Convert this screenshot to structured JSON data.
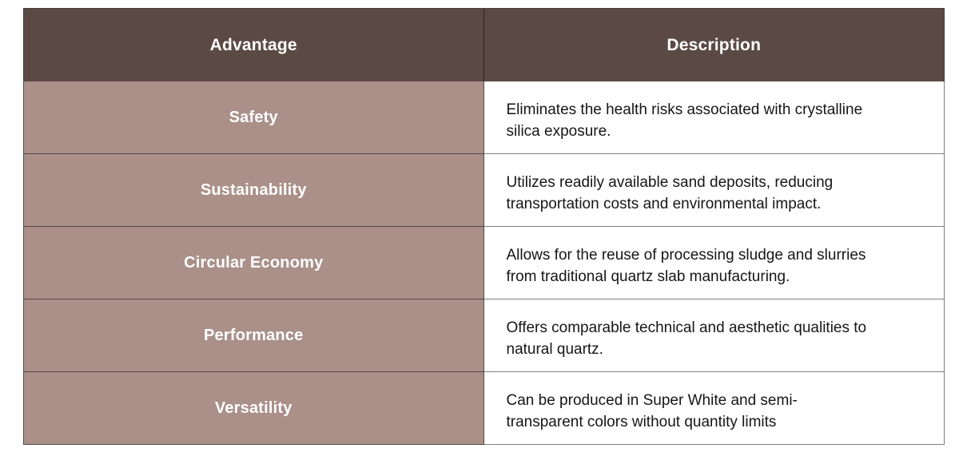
{
  "page": {
    "background": "#ffffff"
  },
  "table": {
    "columns": [
      "Advantage",
      "Description"
    ],
    "rows": [
      {
        "advantage": "Safety",
        "description": "Eliminates the health risks associated with crystalline\nsilica exposure."
      },
      {
        "advantage": "Sustainability",
        "description": "Utilizes readily available sand deposits, reducing\ntransportation costs and environmental impact."
      },
      {
        "advantage": "Circular Economy",
        "description": "Allows for the reuse of processing sludge and slurries\nfrom traditional quartz slab manufacturing."
      },
      {
        "advantage": "Performance",
        "description": "Offers comparable technical and aesthetic qualities to\nnatural quartz."
      },
      {
        "advantage": "Versatility",
        "description": "Can be produced in Super White and semi-\ntransparent colors without quantity limits"
      }
    ],
    "colors": {
      "header_background": "#5b4a43",
      "header_text": "#ffffff",
      "advantage_background": "#aa9089",
      "advantage_text": "#ffffff",
      "description_background": "#ffffff",
      "description_text": "#161616",
      "grid_line": "rgba(0,0,0,0.5)"
    }
  }
}
